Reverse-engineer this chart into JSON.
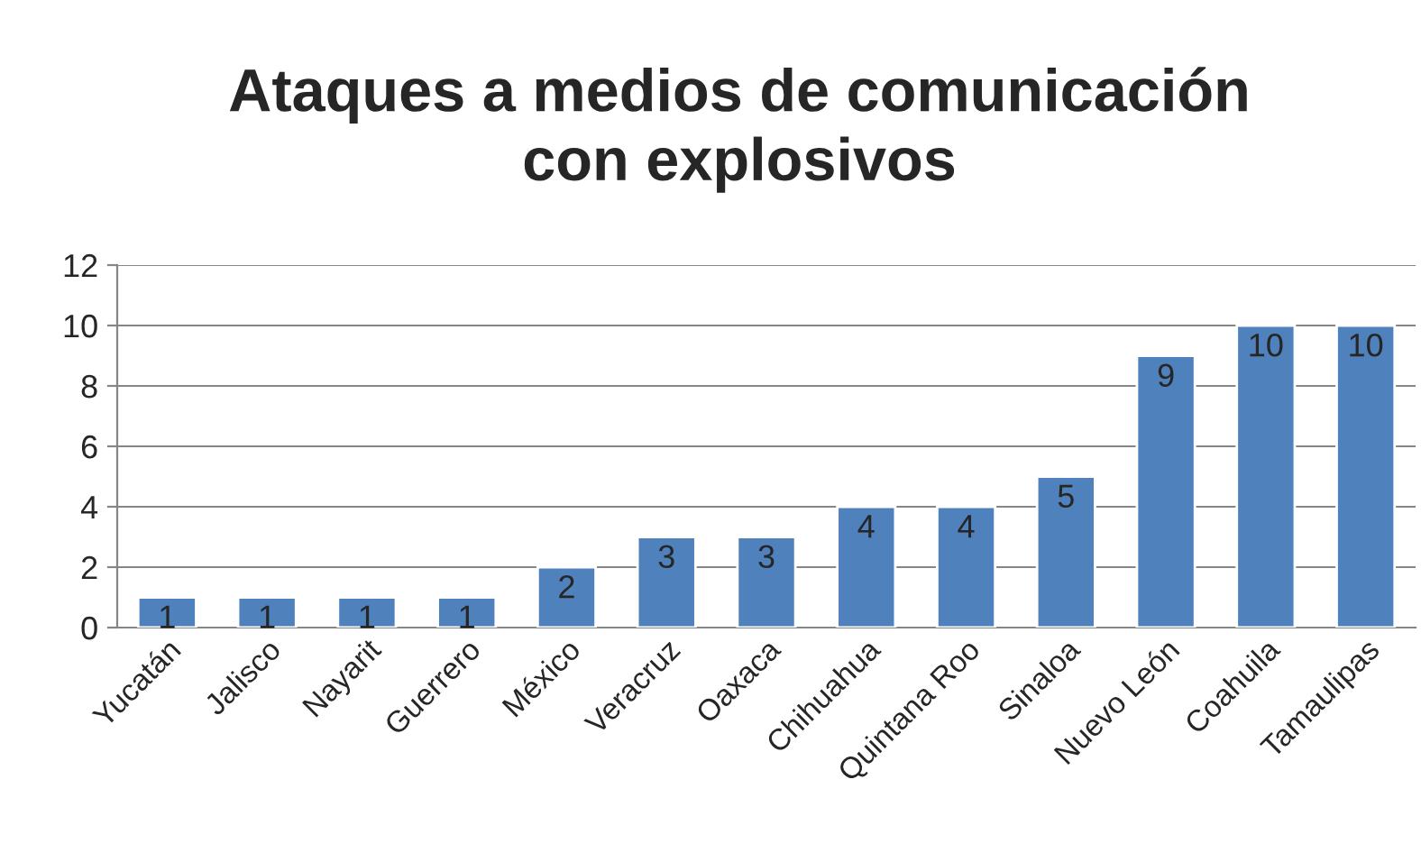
{
  "chart_data": {
    "type": "bar",
    "title": "Ataques a medios de comunicación\ncon explosivos",
    "categories": [
      "Yucatán",
      "Jalisco",
      "Nayarit",
      "Guerrero",
      "México",
      "Veracruz",
      "Oaxaca",
      "Chihuahua",
      "Quintana Roo",
      "Sinaloa",
      "Nuevo León",
      "Coahuila",
      "Tamaulipas"
    ],
    "values": [
      1,
      1,
      1,
      1,
      2,
      3,
      3,
      4,
      4,
      5,
      9,
      10,
      10
    ],
    "color": "#4f81bd",
    "ylim": [
      0,
      12
    ],
    "yticks": [
      0,
      2,
      4,
      6,
      8,
      10,
      12
    ],
    "grid": "y",
    "data_labels": true,
    "legend": false
  }
}
